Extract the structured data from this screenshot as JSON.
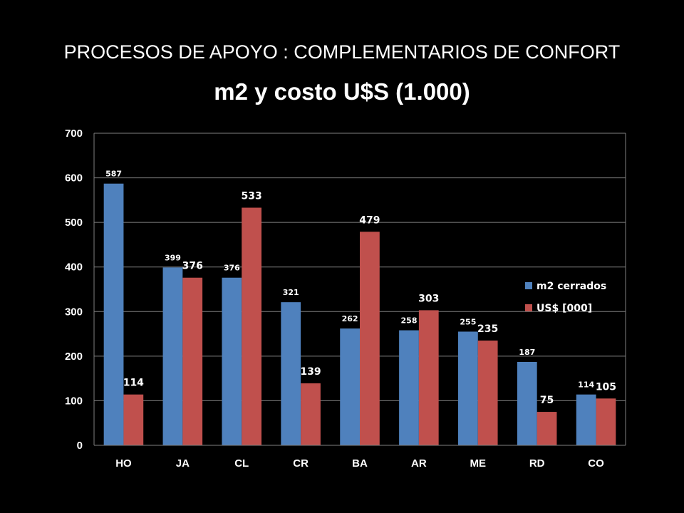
{
  "header": {
    "title": "PROCESOS DE APOYO : COMPLEMENTARIOS DE CONFORT",
    "subtitle": "m2 y costo U$S (1.000)"
  },
  "chart_data": {
    "type": "bar",
    "title": "m2 y costo U$S (1.000)",
    "categories": [
      "HO",
      "JA",
      "CL",
      "CR",
      "BA",
      "AR",
      "ME",
      "RD",
      "CO"
    ],
    "series": [
      {
        "name": "m2 cerrados",
        "color": "#4f81bd",
        "values": [
          587,
          399,
          376,
          321,
          262,
          258,
          255,
          187,
          114
        ]
      },
      {
        "name": "US$ [000]",
        "color": "#c0504d",
        "values": [
          114,
          376,
          533,
          139,
          479,
          303,
          235,
          75,
          105
        ]
      }
    ],
    "ylim": [
      0,
      700
    ],
    "yticks": [
      0,
      100,
      200,
      300,
      400,
      500,
      600,
      700
    ],
    "grid": true,
    "legend": "right"
  }
}
